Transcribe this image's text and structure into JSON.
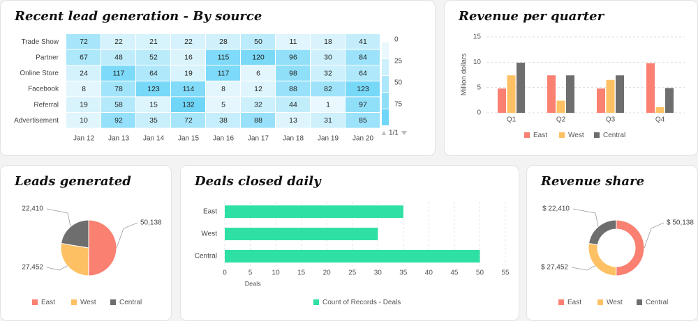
{
  "titles": {
    "heatmap": "Recent lead generation - By source",
    "revenue_quarter": "Revenue per quarter",
    "leads": "Leads generated",
    "deals": "Deals closed daily",
    "share": "Revenue share"
  },
  "colors": {
    "east": "#fa8072",
    "west": "#fdc164",
    "central": "#6e6e6e",
    "deals": "#2fe0a4"
  },
  "heatmap_pager": "1/1",
  "chart_data": [
    {
      "type": "heatmap",
      "title": "Recent lead generation - By source",
      "rows": [
        "Trade Show",
        "Partner",
        "Online Store",
        "Facebook",
        "Referral",
        "Advertisement"
      ],
      "columns": [
        "Jan 12",
        "Jan 13",
        "Jan 14",
        "Jan 15",
        "Jan 16",
        "Jan 17",
        "Jan 18",
        "Jan 19",
        "Jan 20"
      ],
      "values": [
        [
          72,
          22,
          21,
          22,
          28,
          50,
          11,
          18,
          41
        ],
        [
          67,
          48,
          52,
          16,
          115,
          120,
          96,
          30,
          84
        ],
        [
          24,
          117,
          64,
          19,
          117,
          6,
          98,
          32,
          64
        ],
        [
          8,
          78,
          123,
          114,
          8,
          12,
          88,
          82,
          123
        ],
        [
          19,
          58,
          15,
          132,
          5,
          32,
          44,
          1,
          97
        ],
        [
          10,
          92,
          35,
          72,
          38,
          88,
          13,
          31,
          85
        ]
      ],
      "legend_ticks": [
        "0",
        "25",
        "50",
        "75"
      ]
    },
    {
      "type": "bar",
      "title": "Revenue per quarter",
      "categories": [
        "Q1",
        "Q2",
        "Q3",
        "Q4"
      ],
      "ylabel": "Million dollars",
      "ylim": [
        0,
        15
      ],
      "yticks": [
        "0",
        "5",
        "10",
        "15"
      ],
      "grid": true,
      "legend_position": "bottom",
      "series": [
        {
          "name": "East",
          "values": [
            4.8,
            7.4,
            4.8,
            9.8
          ]
        },
        {
          "name": "West",
          "values": [
            7.4,
            2.4,
            6.5,
            1.1
          ]
        },
        {
          "name": "Central",
          "values": [
            9.9,
            7.4,
            7.4,
            4.9
          ]
        }
      ]
    },
    {
      "type": "pie",
      "title": "Leads generated",
      "labels": [
        "East",
        "West",
        "Central"
      ],
      "values": [
        50138,
        27452,
        22410
      ],
      "value_labels": [
        "50,138",
        "27,452",
        "22,410"
      ],
      "legend_position": "bottom"
    },
    {
      "type": "bar",
      "orientation": "horizontal",
      "title": "Deals closed daily",
      "categories": [
        "East",
        "West",
        "Central"
      ],
      "values": [
        35,
        30,
        50
      ],
      "xlabel": "Deals",
      "xlim": [
        0,
        55
      ],
      "xticks": [
        "0",
        "5",
        "10",
        "15",
        "20",
        "25",
        "30",
        "35",
        "40",
        "45",
        "50",
        "55"
      ],
      "series_name": "Count of Records - Deals",
      "legend_position": "bottom"
    },
    {
      "type": "pie",
      "subtype": "donut",
      "title": "Revenue share",
      "labels": [
        "East",
        "West",
        "Central"
      ],
      "values": [
        50138,
        27452,
        22410
      ],
      "value_labels": [
        "$ 50,138",
        "$ 27,452",
        "$ 22,410"
      ],
      "legend_position": "bottom"
    }
  ]
}
